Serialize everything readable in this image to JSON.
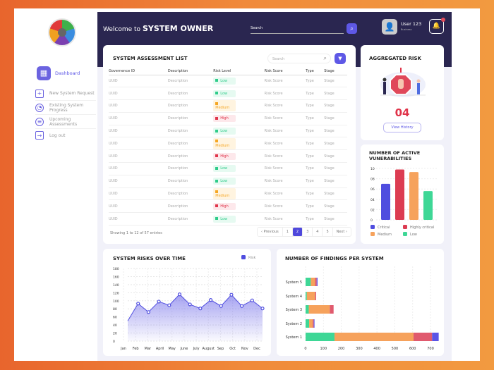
{
  "header": {
    "welcome": "Welcome to",
    "role": "SYSTEM OWNER",
    "search_placeholder": "Search",
    "user_name": "User 123",
    "user_role": "Business"
  },
  "sidebar": {
    "items": [
      {
        "label": "Dashboard",
        "icon": "grid-icon"
      },
      {
        "label": "New System Request",
        "icon": "plus-square-icon"
      },
      {
        "label": "Existing System Progress",
        "icon": "progress-icon"
      },
      {
        "label": "Upcoming Assessments",
        "icon": "calendar-icon"
      },
      {
        "label": "Log out",
        "icon": "logout-icon"
      }
    ]
  },
  "table": {
    "title": "SYSTEM ASSESSMENT LIST",
    "search_placeholder": "Search",
    "columns": [
      "Governence ID",
      "Description",
      "Risk Level",
      "Risk Score",
      "Type",
      "Stage"
    ],
    "rows": [
      [
        "UUID",
        "Description",
        "Low",
        "Risk Score",
        "Type",
        "Stage"
      ],
      [
        "UUID",
        "Description",
        "Low",
        "Risk Score",
        "Type",
        "Stage"
      ],
      [
        "UUID",
        "Description",
        "Medium",
        "Risk Score",
        "Type",
        "Stage"
      ],
      [
        "UUID",
        "Description",
        "High",
        "Risk Score",
        "Type",
        "Stage"
      ],
      [
        "UUID",
        "Description",
        "Low",
        "Risk Score",
        "Type",
        "Stage"
      ],
      [
        "UUID",
        "Description",
        "Medium",
        "Risk Score",
        "Type",
        "Stage"
      ],
      [
        "UUID",
        "Description",
        "High",
        "Risk Score",
        "Type",
        "Stage"
      ],
      [
        "UUID",
        "Description",
        "Low",
        "Risk Score",
        "Type",
        "Stage"
      ],
      [
        "UUID",
        "Description",
        "Low",
        "Risk Score",
        "Type",
        "Stage"
      ],
      [
        "UUID",
        "Description",
        "Medium",
        "Risk Score",
        "Type",
        "Stage"
      ],
      [
        "UUID",
        "Description",
        "High",
        "Risk Score",
        "Type",
        "Stage"
      ],
      [
        "UUID",
        "Description",
        "Low",
        "Risk Score",
        "Type",
        "Stage"
      ]
    ],
    "showing": "Showing 1 to 12 of 57 entries",
    "pagination": [
      "‹ Previous",
      "1",
      "2",
      "3",
      "4",
      "5",
      "Next ›"
    ],
    "current_page": "2"
  },
  "level_colors": {
    "Low": [
      "#2ecc8a",
      "#e6faf1"
    ],
    "Medium": [
      "#f5a623",
      "#fff4e0"
    ],
    "High": [
      "#e0344a",
      "#fde8eb"
    ]
  },
  "aggregated": {
    "title": "AGGREGATED RISK",
    "value": "04",
    "button": "View History"
  },
  "chart_data": [
    {
      "type": "bar",
      "title": "NUMBER OF ACTIVE VUNERABILITIES",
      "categories": [
        "Critical",
        "Highly critical",
        "Medium",
        "Low"
      ],
      "values": [
        7.0,
        9.8,
        9.3,
        5.6
      ],
      "colors": [
        "#4f4ddf",
        "#dc3c52",
        "#f6a25c",
        "#3ed796"
      ],
      "yticks": [
        "0",
        "02",
        "04",
        "06",
        "08",
        "10"
      ],
      "ylim": [
        0,
        10
      ],
      "legend": "bottom"
    },
    {
      "type": "area",
      "title": "SYSTEM RISKS OVER TIME",
      "series": [
        {
          "name": "Risk",
          "values": [
            50,
            93,
            72,
            98,
            89,
            116,
            91,
            81,
            102,
            87,
            115,
            87,
            101,
            81
          ]
        }
      ],
      "xticks": [
        "Jan",
        "Feb",
        "Mar",
        "April",
        "May",
        "June",
        "July",
        "August",
        "Sep",
        "Oct",
        "Nov",
        "Dec"
      ],
      "ylim": [
        0,
        180
      ],
      "yticks": [
        0,
        20,
        40,
        60,
        80,
        100,
        120,
        140,
        160,
        180
      ],
      "color": "#4f4ddf",
      "grid": true,
      "legend": "top-right"
    },
    {
      "type": "bar",
      "orientation": "horizontal",
      "stacked": true,
      "title": "NUMBER OF FINDINGS PER SYSTEM",
      "categories": [
        "System 5",
        "System 4",
        "System  3",
        "System  2",
        "System 1"
      ],
      "series": [
        {
          "values": [
            29,
            7,
            18,
            20,
            162
          ],
          "color": "#3ed796"
        },
        {
          "values": [
            24,
            46,
            118,
            20,
            443
          ],
          "color": "#f6a25c"
        },
        {
          "values": [
            9,
            6,
            21,
            6,
            104
          ],
          "color": "#e05a6e"
        },
        {
          "values": [
            5,
            0,
            0,
            4,
            37
          ],
          "color": "#5b55e6"
        }
      ],
      "xlim": [
        0,
        700
      ],
      "xticks": [
        0,
        100,
        200,
        300,
        400,
        500,
        600,
        700
      ],
      "grid": true
    }
  ]
}
